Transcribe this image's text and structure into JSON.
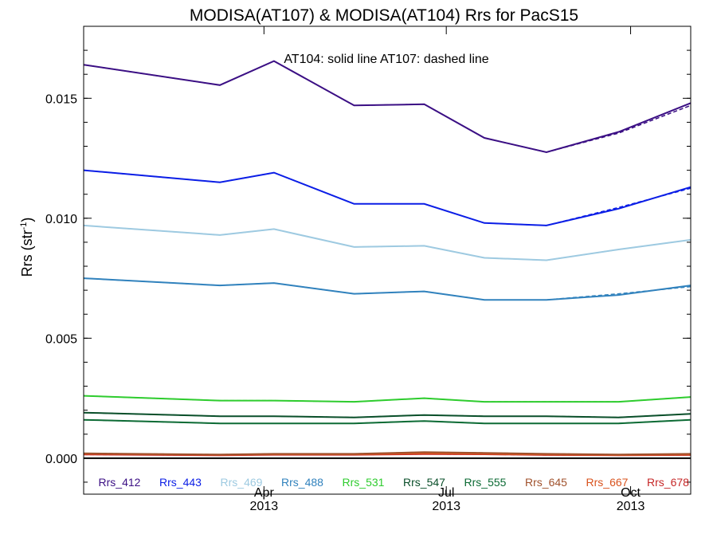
{
  "chart_data": {
    "type": "line",
    "title": "MODISA(AT107) & MODISA(AT104)  Rrs for PacS15",
    "annotation": "AT104: solid line   AT107: dashed line",
    "ylabel_base": "Rrs (str",
    "ylabel_sup": "-1",
    "ylabel_end": ")",
    "ylim": [
      -0.0015,
      0.018
    ],
    "yticks": [
      {
        "value": 0.0,
        "label": "0.000"
      },
      {
        "value": 0.005,
        "label": "0.005"
      },
      {
        "value": 0.01,
        "label": "0.010"
      },
      {
        "value": 0.015,
        "label": "0.015"
      }
    ],
    "xlim": [
      "2013-01-01",
      "2013-10-31"
    ],
    "xticks": [
      {
        "date": "2013-04-01",
        "label": "Apr",
        "year": "2013"
      },
      {
        "date": "2013-07-01",
        "label": "Jul",
        "year": "2013"
      },
      {
        "date": "2013-10-01",
        "label": "Oct",
        "year": "2013"
      }
    ],
    "x": [
      "2013-01-01",
      "2013-03-10",
      "2013-04-06",
      "2013-05-16",
      "2013-06-20",
      "2013-07-20",
      "2013-08-20",
      "2013-09-25",
      "2013-10-31"
    ],
    "series": [
      {
        "name": "Rrs_412",
        "color": "#3b0f84",
        "solid": [
          0.0164,
          0.01555,
          0.01655,
          0.0147,
          0.01475,
          0.01335,
          0.01275,
          0.0136,
          0.0148
        ],
        "dashed": [
          0.0164,
          0.01555,
          0.01655,
          0.0147,
          0.01475,
          0.01335,
          0.01275,
          0.01355,
          0.0147
        ]
      },
      {
        "name": "Rrs_443",
        "color": "#0b1ee6",
        "solid": [
          0.012,
          0.0115,
          0.0119,
          0.0106,
          0.0106,
          0.0098,
          0.0097,
          0.0104,
          0.0113
        ],
        "dashed": [
          0.012,
          0.0115,
          0.0119,
          0.0106,
          0.0106,
          0.0098,
          0.0097,
          0.01045,
          0.01125
        ]
      },
      {
        "name": "Rrs_469",
        "color": "#9ecae1",
        "solid": [
          0.0097,
          0.0093,
          0.00955,
          0.0088,
          0.00885,
          0.00835,
          0.00825,
          0.0087,
          0.0091
        ],
        "dashed": [
          0.0097,
          0.0093,
          0.00955,
          0.0088,
          0.00885,
          0.00835,
          0.00825,
          0.0087,
          0.0091
        ]
      },
      {
        "name": "Rrs_488",
        "color": "#3182bd",
        "solid": [
          0.0075,
          0.0072,
          0.0073,
          0.00685,
          0.00695,
          0.0066,
          0.0066,
          0.0068,
          0.0072
        ],
        "dashed": [
          0.0075,
          0.0072,
          0.0073,
          0.00685,
          0.00695,
          0.0066,
          0.0066,
          0.00685,
          0.00715
        ]
      },
      {
        "name": "Rrs_531",
        "color": "#2ecc2e",
        "solid": [
          0.0026,
          0.0024,
          0.0024,
          0.00235,
          0.0025,
          0.00235,
          0.00235,
          0.00235,
          0.00255
        ],
        "dashed": [
          0.0026,
          0.0024,
          0.0024,
          0.00235,
          0.0025,
          0.00235,
          0.00235,
          0.00235,
          0.00255
        ]
      },
      {
        "name": "Rrs_547",
        "color": "#0a4f2a",
        "solid": [
          0.0019,
          0.00175,
          0.00175,
          0.0017,
          0.0018,
          0.00175,
          0.00175,
          0.0017,
          0.00185
        ],
        "dashed": [
          0.0019,
          0.00175,
          0.00175,
          0.0017,
          0.0018,
          0.00175,
          0.00175,
          0.0017,
          0.00185
        ]
      },
      {
        "name": "Rrs_555",
        "color": "#0d6b35",
        "solid": [
          0.0016,
          0.00145,
          0.00145,
          0.00145,
          0.00155,
          0.00145,
          0.00145,
          0.00145,
          0.0016
        ],
        "dashed": [
          0.0016,
          0.00145,
          0.00145,
          0.00145,
          0.00155,
          0.00145,
          0.00145,
          0.00145,
          0.0016
        ]
      },
      {
        "name": "Rrs_645",
        "color": "#a0522d",
        "solid": [
          0.0002,
          0.00015,
          0.00018,
          0.00018,
          0.00025,
          0.00022,
          0.00018,
          0.00015,
          0.00018
        ],
        "dashed": [
          0.0002,
          0.00015,
          0.00018,
          0.00018,
          0.00025,
          0.00022,
          0.00018,
          0.00015,
          0.00018
        ]
      },
      {
        "name": "Rrs_667",
        "color": "#d9531e",
        "solid": [
          0.00018,
          0.00014,
          0.00016,
          0.00016,
          0.0002,
          0.00018,
          0.00015,
          0.00013,
          0.00015
        ],
        "dashed": [
          0.00018,
          0.00014,
          0.00016,
          0.00016,
          0.0002,
          0.00018,
          0.00015,
          0.00013,
          0.00015
        ]
      },
      {
        "name": "Rrs_678",
        "color": "#c62828",
        "solid": [
          0.00015,
          0.00012,
          0.00014,
          0.00014,
          0.00017,
          0.00016,
          0.00013,
          0.00012,
          0.00013
        ],
        "dashed": [
          0.00015,
          0.00012,
          0.00014,
          0.00014,
          0.00017,
          0.00016,
          0.00013,
          0.00012,
          0.00013
        ]
      }
    ],
    "zero_line_color": "#000000",
    "grid": false,
    "legend_position": "bottom"
  }
}
